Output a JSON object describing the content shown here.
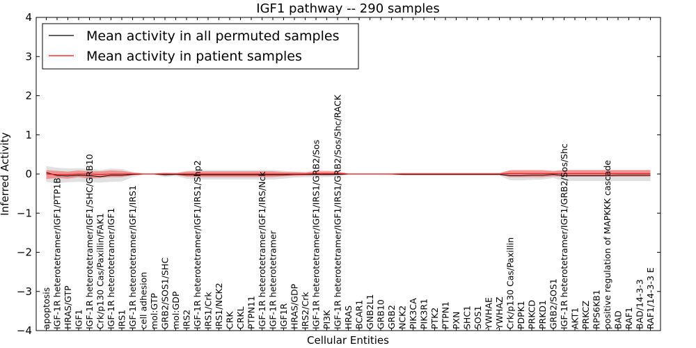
{
  "chart_data": {
    "type": "line",
    "title": "IGF1 pathway -- 290 samples",
    "xlabel": "Cellular Entities",
    "ylabel": "Inferred Activity",
    "ylim": [
      -4,
      4
    ],
    "yticks": [
      4,
      3,
      2,
      1,
      0,
      -1,
      -2,
      -3,
      -4
    ],
    "ytick_labels": [
      "4",
      "3",
      "2",
      "1",
      "0",
      "−1",
      "−2",
      "−3",
      "−4"
    ],
    "grid": false,
    "legend_position": "top-left",
    "categories": [
      "apoptosis",
      "IGF-1R heterotetramer/IGF1/PTP1B",
      "HRAS/GTP",
      "IGF1",
      "IGF-1R heterotetramer/IGF1/SHC/GRB10",
      "Crk/p130 Cas/Paxillin/FAK1",
      "IGF-1R heterotetramer/IGF1",
      "IRS1",
      "IGF-1R heterotetramer/IGF1/IRS1",
      "cell adhesion",
      "mol:GTP",
      "GRB2/SOS1/SHC",
      "mol:GDP",
      "IRS2",
      "IGF-1R heterotetramer/IGF1/IRS1/Shp2",
      "IRS1/Crk",
      "IRS1/NCK2",
      "CRK",
      "CRKL",
      "PTPN11",
      "IGF-1R heterotetramer/IGF1/IRS/Nck",
      "IGF-1R heterotetramer",
      "IGF1R",
      "HRAS/GDP",
      "IRS2/Crk",
      "IGF-1R heterotetramer/IGF1/IRS1/GRB2/Sos",
      "PI3K",
      "IGF-1R heterotetramer/IGF1/IRS1/GRB2/Sos/Shc/RACK",
      "HRAS",
      "BCAR1",
      "GNB2L1",
      "GRB10",
      "GRB2",
      "NCK2",
      "PIK3CA",
      "PIK3R1",
      "PTK2",
      "PTPN1",
      "PXN",
      "SHC1",
      "SOS1",
      "YWHAE",
      "YWHAZ",
      "Crk/p130 Cas/Paxillin",
      "PDPK1",
      "PRKCD",
      "PRKD1",
      "GRB2/SOS1",
      "IGF-1R heterotetramer/IGF1/GRB2/Sos/Shc",
      "AKT1",
      "PRKCZ",
      "RPS6KB1",
      "positive regulation of MAPKKK cascade",
      "BAD",
      "RAF1",
      "BAD/14-3-3",
      "RAF1/14-3-3 E"
    ],
    "series": [
      {
        "name": "Mean activity in all permuted samples",
        "color": "#000000",
        "values": [
          0.04,
          -0.04,
          -0.05,
          -0.03,
          -0.04,
          -0.07,
          -0.03,
          -0.03,
          -0.01,
          0,
          0,
          -0.02,
          -0.01,
          -0.02,
          -0.02,
          -0.02,
          -0.02,
          -0.02,
          -0.02,
          -0.02,
          -0.02,
          -0.02,
          -0.02,
          -0.01,
          -0.01,
          -0.01,
          -0.01,
          -0.01,
          0,
          0,
          0,
          0,
          0,
          -0.01,
          -0.01,
          -0.01,
          -0.01,
          -0.01,
          -0.01,
          -0.01,
          -0.01,
          -0.01,
          -0.01,
          -0.04,
          -0.04,
          -0.03,
          -0.03,
          -0.01,
          -0.04,
          -0.04,
          -0.04,
          -0.04,
          -0.04,
          -0.03,
          -0.03,
          -0.03,
          -0.03
        ],
        "band_lower": [
          -0.2,
          -0.24,
          -0.21,
          -0.2,
          -0.21,
          -0.22,
          -0.2,
          -0.19,
          -0.08,
          -0.02,
          -0.02,
          -0.08,
          -0.05,
          -0.12,
          -0.14,
          -0.14,
          -0.14,
          -0.14,
          -0.14,
          -0.14,
          -0.14,
          -0.14,
          -0.12,
          -0.09,
          -0.08,
          -0.08,
          -0.08,
          -0.07,
          -0.02,
          -0.02,
          -0.02,
          -0.02,
          -0.03,
          -0.04,
          -0.04,
          -0.04,
          -0.04,
          -0.04,
          -0.04,
          -0.04,
          -0.04,
          -0.04,
          -0.04,
          -0.16,
          -0.16,
          -0.15,
          -0.14,
          -0.1,
          -0.18,
          -0.18,
          -0.18,
          -0.18,
          -0.18,
          -0.18,
          -0.18,
          -0.18,
          -0.18
        ],
        "band_upper": [
          0.2,
          0.16,
          0.14,
          0.15,
          0.14,
          0.1,
          0.14,
          0.13,
          0.05,
          0.02,
          0.02,
          0.04,
          0.03,
          0.08,
          0.1,
          0.1,
          0.1,
          0.1,
          0.1,
          0.1,
          0.1,
          0.1,
          0.08,
          0.06,
          0.05,
          0.05,
          0.05,
          0.04,
          0.02,
          0.02,
          0.02,
          0.02,
          0.02,
          0.03,
          0.03,
          0.03,
          0.03,
          0.03,
          0.03,
          0.03,
          0.03,
          0.03,
          0.03,
          0.08,
          0.08,
          0.08,
          0.08,
          0.07,
          0.1,
          0.1,
          0.1,
          0.1,
          0.1,
          0.1,
          0.1,
          0.1,
          0.1
        ]
      },
      {
        "name": "Mean activity in patient samples",
        "color": "#ff0000",
        "values": [
          0,
          -0.01,
          -0.01,
          0,
          0,
          -0.01,
          0,
          0,
          0,
          0,
          0,
          0,
          0,
          0,
          0,
          0,
          0,
          0,
          0,
          0,
          0,
          0,
          0,
          0,
          0,
          0.01,
          0.01,
          0.01,
          0,
          0,
          0,
          0,
          0,
          0,
          0,
          0,
          0,
          0,
          0,
          0,
          0,
          0,
          0,
          0.01,
          0.01,
          0.01,
          0.01,
          0.01,
          0.01,
          0.01,
          0.01,
          0.01,
          0.01,
          0.01,
          0.01,
          0.01,
          0.01
        ],
        "band_lower": [
          -0.13,
          -0.1,
          -0.12,
          -0.08,
          -0.12,
          -0.1,
          -0.08,
          -0.08,
          -0.03,
          -0.01,
          -0.01,
          -0.03,
          -0.02,
          -0.07,
          -0.08,
          -0.08,
          -0.08,
          -0.08,
          -0.08,
          -0.08,
          -0.08,
          -0.08,
          -0.06,
          -0.05,
          -0.04,
          -0.04,
          -0.04,
          -0.03,
          -0.01,
          -0.01,
          -0.01,
          -0.01,
          -0.01,
          -0.02,
          -0.02,
          -0.02,
          -0.02,
          -0.02,
          -0.02,
          -0.02,
          -0.02,
          -0.02,
          -0.02,
          -0.08,
          -0.08,
          -0.08,
          -0.08,
          -0.06,
          -0.07,
          -0.07,
          -0.07,
          -0.07,
          -0.07,
          -0.07,
          -0.07,
          -0.07,
          -0.07
        ],
        "band_upper": [
          0.1,
          0.08,
          0.06,
          0.09,
          0.07,
          0.07,
          0.09,
          0.08,
          0.04,
          0.01,
          0.01,
          0.03,
          0.02,
          0.06,
          0.07,
          0.07,
          0.07,
          0.07,
          0.07,
          0.07,
          0.07,
          0.07,
          0.05,
          0.05,
          0.04,
          0.08,
          0.08,
          0.07,
          0.01,
          0.01,
          0.01,
          0.01,
          0.01,
          0.02,
          0.02,
          0.02,
          0.02,
          0.02,
          0.02,
          0.02,
          0.02,
          0.02,
          0.02,
          0.1,
          0.1,
          0.1,
          0.1,
          0.08,
          0.1,
          0.1,
          0.1,
          0.1,
          0.1,
          0.1,
          0.1,
          0.1,
          0.1
        ]
      }
    ]
  }
}
